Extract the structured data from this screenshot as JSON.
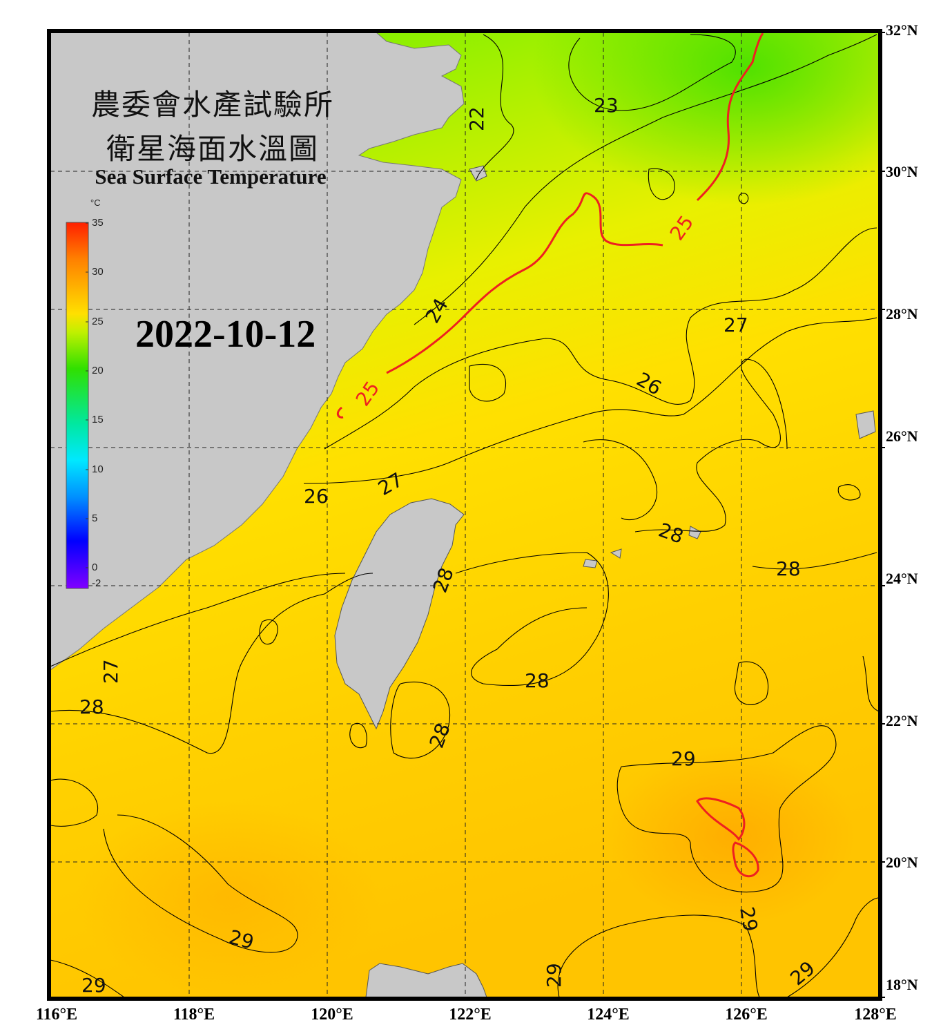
{
  "title_cn_line1": "農委會水產試驗所",
  "title_cn_line2": "衛星海面水溫圖",
  "title_en": "Sea Surface Temperature",
  "date": "2022-10-12",
  "colorbar": {
    "unit": "°C",
    "ticks": [
      "35",
      "30",
      "25",
      "20",
      "15",
      "10",
      "5",
      "0",
      "-2"
    ],
    "min": -2,
    "max": 35
  },
  "lat_labels": [
    "32°N",
    "30°N",
    "28°N",
    "26°N",
    "24°N",
    "22°N",
    "20°N",
    "18°N"
  ],
  "lon_labels": [
    "116°E",
    "118°E",
    "120°E",
    "122°E",
    "124°E",
    "126°E",
    "128°E"
  ],
  "contour_labels": [
    "22",
    "23",
    "24",
    "25",
    "25",
    "26",
    "26",
    "27",
    "27",
    "27",
    "28",
    "28",
    "28",
    "28",
    "28",
    "28",
    "29",
    "29",
    "29",
    "29",
    "29",
    "29"
  ],
  "colors": {
    "land": "#c8c8c8",
    "highlight_isotherm": "#ee2020",
    "frame": "#000000"
  }
}
